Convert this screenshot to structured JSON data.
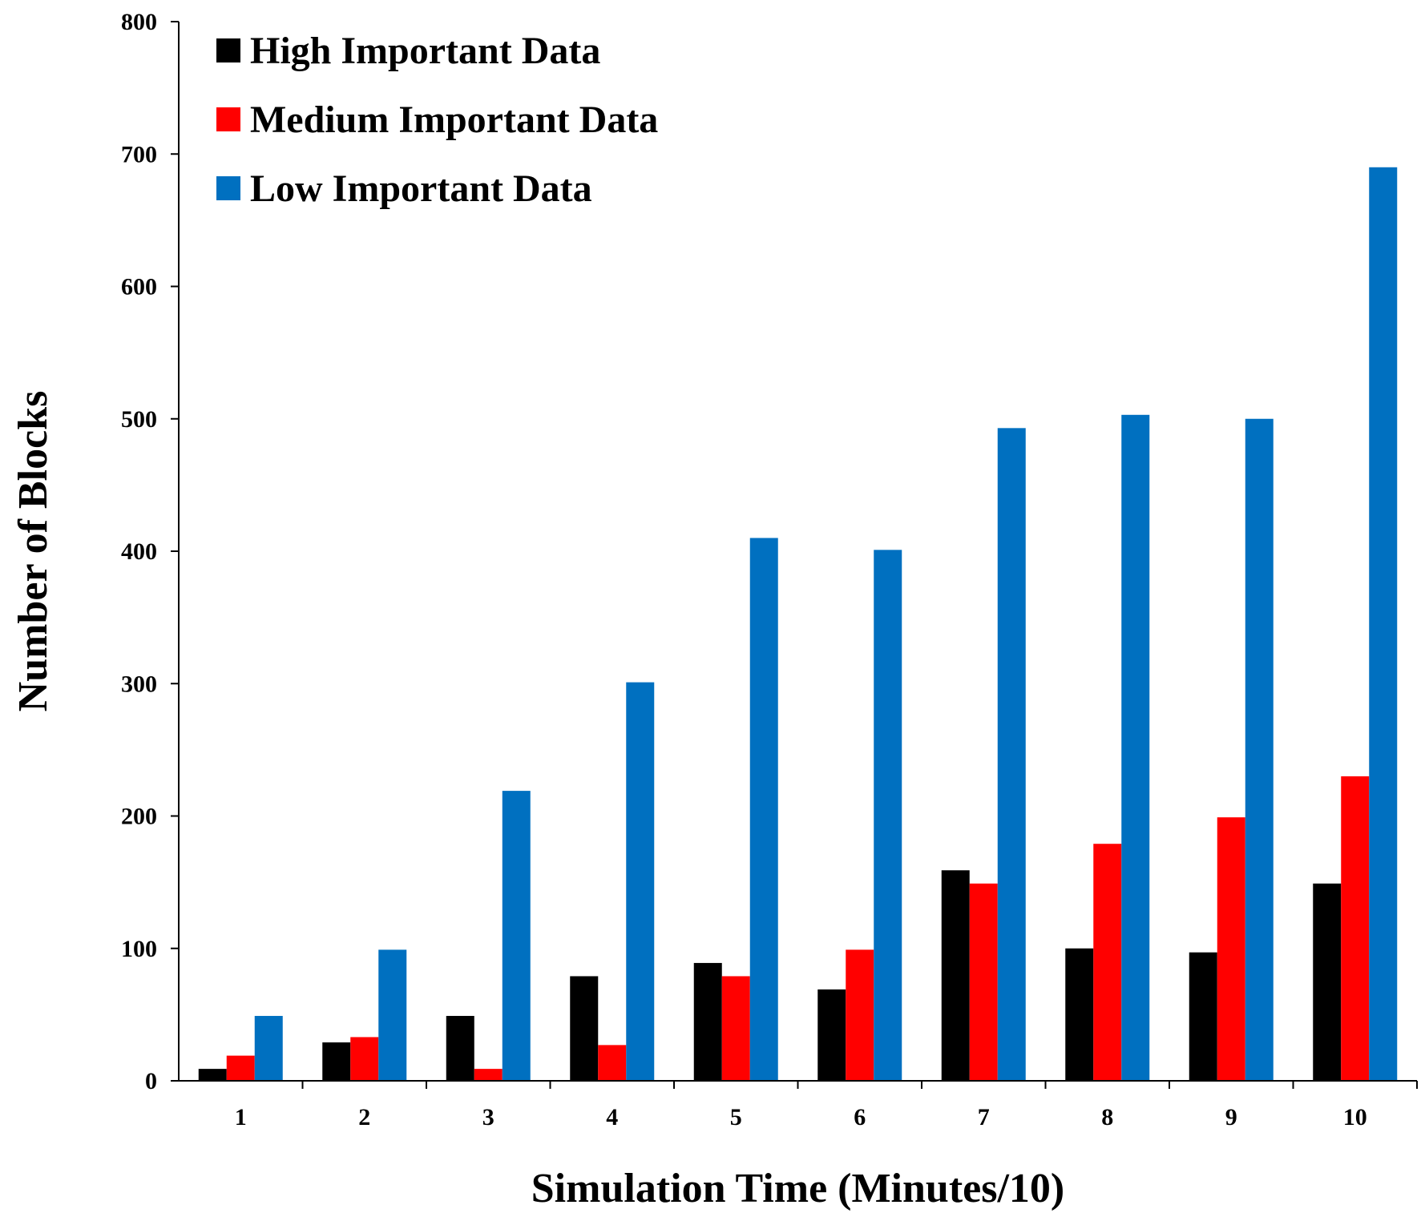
{
  "chart_data": {
    "type": "bar",
    "title": "",
    "xlabel": "Simulation Time (Minutes/10)",
    "ylabel": "Number of Blocks",
    "ylim": [
      0,
      800
    ],
    "yticks": [
      0,
      100,
      200,
      300,
      400,
      500,
      600,
      700,
      800
    ],
    "categories": [
      "1",
      "2",
      "3",
      "4",
      "5",
      "6",
      "7",
      "8",
      "9",
      "10"
    ],
    "grid": false,
    "legend_position": "top-left",
    "series": [
      {
        "name": "High Important Data",
        "color": "#000000",
        "values": [
          9,
          29,
          49,
          79,
          89,
          69,
          159,
          100,
          97,
          149
        ]
      },
      {
        "name": "Medium Important Data",
        "color": "#ff0000",
        "values": [
          19,
          33,
          9,
          27,
          79,
          99,
          149,
          179,
          199,
          230
        ]
      },
      {
        "name": "Low Important Data",
        "color": "#0070c0",
        "values": [
          49,
          99,
          219,
          301,
          410,
          401,
          493,
          503,
          500,
          690
        ]
      }
    ]
  }
}
